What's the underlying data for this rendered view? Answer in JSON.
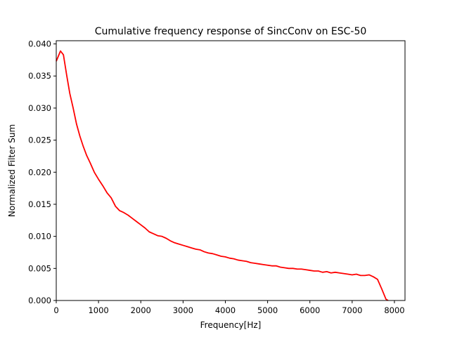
{
  "chart_data": {
    "type": "line",
    "title": "Cumulative frequency response of SincConv on ESC-50",
    "xlabel": "Frequency[Hz]",
    "ylabel": "Normalized Filter Sum",
    "xlim": [
      0,
      8250
    ],
    "ylim": [
      0,
      0.0405
    ],
    "x_ticks": [
      0,
      1000,
      2000,
      3000,
      4000,
      5000,
      6000,
      7000,
      8000
    ],
    "x_tick_labels": [
      "0",
      "1000",
      "2000",
      "3000",
      "4000",
      "5000",
      "6000",
      "7000",
      "8000"
    ],
    "y_ticks": [
      0,
      0.005,
      0.01,
      0.015,
      0.02,
      0.025,
      0.03,
      0.035,
      0.04
    ],
    "y_tick_labels": [
      "0.000",
      "0.005",
      "0.010",
      "0.015",
      "0.020",
      "0.025",
      "0.030",
      "0.035",
      "0.040"
    ],
    "grid": false,
    "series": [
      {
        "color": "#ff0000",
        "x": [
          0,
          100,
          170,
          250,
          320,
          400,
          480,
          560,
          640,
          720,
          800,
          900,
          1000,
          1100,
          1200,
          1300,
          1400,
          1500,
          1600,
          1700,
          1800,
          1900,
          2000,
          2100,
          2200,
          2300,
          2400,
          2500,
          2600,
          2700,
          2800,
          2900,
          3000,
          3100,
          3200,
          3300,
          3400,
          3500,
          3600,
          3700,
          3800,
          3900,
          4000,
          4100,
          4200,
          4300,
          4400,
          4500,
          4600,
          4700,
          4800,
          4900,
          5000,
          5100,
          5200,
          5300,
          5400,
          5500,
          5600,
          5700,
          5800,
          5900,
          6000,
          6100,
          6200,
          6300,
          6400,
          6500,
          6600,
          6700,
          6800,
          6900,
          7000,
          7100,
          7200,
          7300,
          7400,
          7500,
          7600,
          7700,
          7800,
          7850
        ],
        "y": [
          0.0373,
          0.0389,
          0.0383,
          0.035,
          0.0323,
          0.03,
          0.0275,
          0.0256,
          0.024,
          0.0226,
          0.0215,
          0.02,
          0.0189,
          0.0179,
          0.0168,
          0.016,
          0.0147,
          0.014,
          0.0137,
          0.0133,
          0.0128,
          0.0123,
          0.0118,
          0.0113,
          0.0107,
          0.0104,
          0.0101,
          0.01,
          0.0097,
          0.0093,
          0.009,
          0.0088,
          0.0086,
          0.0084,
          0.0082,
          0.008,
          0.0079,
          0.0076,
          0.0074,
          0.0073,
          0.0071,
          0.0069,
          0.0068,
          0.0066,
          0.0065,
          0.0063,
          0.0062,
          0.0061,
          0.0059,
          0.0058,
          0.0057,
          0.0056,
          0.0055,
          0.0054,
          0.0054,
          0.0052,
          0.0051,
          0.005,
          0.005,
          0.0049,
          0.0049,
          0.0048,
          0.0047,
          0.0046,
          0.0046,
          0.0044,
          0.0045,
          0.0043,
          0.0044,
          0.0043,
          0.0042,
          0.0041,
          0.004,
          0.0041,
          0.0039,
          0.0039,
          0.004,
          0.0037,
          0.0033,
          0.0018,
          0.0002,
          0.0
        ]
      }
    ]
  }
}
